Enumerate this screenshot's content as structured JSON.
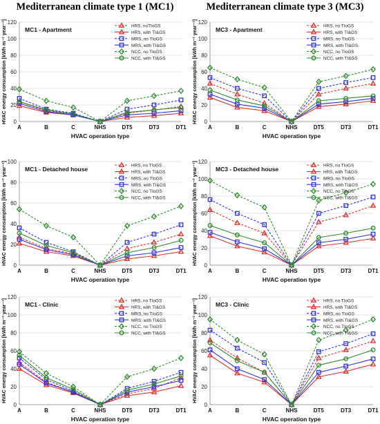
{
  "figure": {
    "col_titles": [
      "Mediterranean climate type 1 (MC1)",
      "Mediterranean climate type 3 (MC3)"
    ]
  },
  "chart_data": [
    {
      "type": "line",
      "title": "MC1 - Apartment",
      "xlabel": "HVAC operation type",
      "ylabel": "HVAC energy consumption  [kWh m⁻² year⁻¹]",
      "categories": [
        "A",
        "B",
        "C",
        "NHS",
        "DT5",
        "DT3",
        "DT1"
      ],
      "ylim": [
        0,
        120
      ],
      "yticks": [
        0,
        20,
        40,
        60,
        80,
        100,
        120
      ],
      "grid": true,
      "legend_position": "top-right",
      "series": [
        {
          "name": "HRS, noTIoGS",
          "color": "#e03030",
          "dashed": true,
          "marker": "triangle",
          "values": [
            24,
            13,
            9,
            0,
            10,
            14,
            18
          ]
        },
        {
          "name": "HRS, with TI&GS",
          "color": "#e03030",
          "dashed": false,
          "marker": "triangle",
          "values": [
            19,
            11,
            8,
            0,
            5,
            7,
            10
          ]
        },
        {
          "name": "MRS, no TIoGS",
          "color": "#3030e0",
          "dashed": true,
          "marker": "square",
          "values": [
            28,
            15,
            10,
            0,
            15,
            20,
            26
          ]
        },
        {
          "name": "MRS, with TI&GS",
          "color": "#3030e0",
          "dashed": false,
          "marker": "square",
          "values": [
            22,
            12,
            8,
            0,
            8,
            10,
            13
          ]
        },
        {
          "name": "NCC, no TIoGS",
          "color": "#2e8b2e",
          "dashed": true,
          "marker": "diamond",
          "values": [
            39,
            25,
            17,
            0,
            25,
            31,
            37
          ]
        },
        {
          "name": "NCC, with TI&GS",
          "color": "#2e8b2e",
          "dashed": false,
          "marker": "circle",
          "values": [
            24,
            14,
            9,
            0,
            11,
            14,
            17
          ]
        }
      ]
    },
    {
      "type": "line",
      "title": "MC3 - Apartment",
      "xlabel": "HVAC operation type",
      "ylabel": "HVAC energy consumption  [kWh m⁻² year⁻¹]",
      "categories": [
        "A",
        "B",
        "C",
        "NHS",
        "DT5",
        "DT3",
        "DT1"
      ],
      "ylim": [
        0,
        120
      ],
      "yticks": [
        0,
        20,
        40,
        60,
        80,
        100,
        120
      ],
      "grid": true,
      "legend_position": "top-right",
      "series": [
        {
          "name": "HRS, no TIoGS",
          "color": "#e03030",
          "dashed": true,
          "marker": "triangle",
          "values": [
            46,
            33,
            22,
            0,
            33,
            40,
            46
          ]
        },
        {
          "name": "HRS, with TI&GS",
          "color": "#e03030",
          "dashed": false,
          "marker": "triangle",
          "values": [
            29,
            17,
            13,
            0,
            18,
            21,
            25
          ]
        },
        {
          "name": "MRS, no TIoGS",
          "color": "#3030e0",
          "dashed": true,
          "marker": "square",
          "values": [
            53,
            40,
            31,
            0,
            40,
            47,
            53
          ]
        },
        {
          "name": "MRS, with TI&GS",
          "color": "#3030e0",
          "dashed": false,
          "marker": "square",
          "values": [
            33,
            21,
            16,
            0,
            21,
            24,
            28
          ]
        },
        {
          "name": "NCC, no TIoGS",
          "color": "#2e8b2e",
          "dashed": true,
          "marker": "diamond",
          "values": [
            65,
            51,
            41,
            0,
            48,
            55,
            63
          ]
        },
        {
          "name": "NCC, with TI&GS",
          "color": "#2e8b2e",
          "dashed": false,
          "marker": "circle",
          "values": [
            38,
            26,
            19,
            0,
            25,
            28,
            31
          ]
        }
      ]
    },
    {
      "type": "line",
      "title": "MC1 - Detached house",
      "xlabel": "HVAC operation type",
      "ylabel": "HVAC energy consumption  [kWh m⁻² year⁻¹]",
      "categories": [
        "A",
        "B",
        "C",
        "NHS",
        "DT5",
        "DT3",
        "DT1"
      ],
      "ylim": [
        0,
        100
      ],
      "yticks": [
        0,
        20,
        40,
        60,
        80,
        100
      ],
      "grid": true,
      "legend_position": "top-right",
      "series": [
        {
          "name": "HRS, no TIoGS",
          "color": "#e03030",
          "dashed": true,
          "marker": "triangle",
          "values": [
            27,
            16,
            11,
            0,
            16,
            22,
            30
          ]
        },
        {
          "name": "HRS, with TI&GS",
          "color": "#e03030",
          "dashed": false,
          "marker": "triangle",
          "values": [
            21,
            13,
            9,
            0,
            6,
            9,
            13
          ]
        },
        {
          "name": "MRS, no TIoGS",
          "color": "#3030e0",
          "dashed": true,
          "marker": "square",
          "values": [
            36,
            22,
            13,
            0,
            22,
            30,
            39
          ]
        },
        {
          "name": "MRS, with TI&GS",
          "color": "#3030e0",
          "dashed": false,
          "marker": "square",
          "values": [
            25,
            15,
            10,
            0,
            9,
            12,
            17
          ]
        },
        {
          "name": "NCC, no TIoGS",
          "color": "#2e8b2e",
          "dashed": true,
          "marker": "diamond",
          "values": [
            54,
            38,
            27,
            0,
            38,
            47,
            57
          ]
        },
        {
          "name": "NCC, with TI&GS",
          "color": "#2e8b2e",
          "dashed": false,
          "marker": "circle",
          "values": [
            31,
            19,
            12,
            0,
            12,
            17,
            24
          ]
        }
      ]
    },
    {
      "type": "line",
      "title": "MC3 - Detached house",
      "xlabel": "HVAC operation type",
      "ylabel": "HVAC energy consumption  [kWh m⁻² year⁻¹]",
      "categories": [
        "A",
        "B",
        "C",
        "NHS",
        "DT5",
        "DT3",
        "DT1"
      ],
      "ylim": [
        0,
        120
      ],
      "yticks": [
        0,
        20,
        40,
        60,
        80,
        100,
        120
      ],
      "grid": true,
      "legend_position": "top-right",
      "series": [
        {
          "name": "HRS, no TIoGS",
          "color": "#e03030",
          "dashed": true,
          "marker": "triangle",
          "values": [
            64,
            49,
            37,
            0,
            50,
            58,
            69
          ]
        },
        {
          "name": "HRS, with TI&GS",
          "color": "#e03030",
          "dashed": false,
          "marker": "triangle",
          "values": [
            34,
            22,
            15,
            0,
            22,
            26,
            31
          ]
        },
        {
          "name": "MRS, no TIoGS",
          "color": "#3030e0",
          "dashed": true,
          "marker": "square",
          "values": [
            76,
            60,
            47,
            0,
            60,
            69,
            79
          ]
        },
        {
          "name": "MRS, with TI&GS",
          "color": "#3030e0",
          "dashed": false,
          "marker": "square",
          "values": [
            38,
            27,
            19,
            0,
            26,
            30,
            36
          ]
        },
        {
          "name": "NCC, no TIoGS",
          "color": "#2e8b2e",
          "dashed": true,
          "marker": "diamond",
          "values": [
            98,
            81,
            67,
            0,
            75,
            84,
            94
          ]
        },
        {
          "name": "NCC, with TI&GS",
          "color": "#2e8b2e",
          "dashed": false,
          "marker": "circle",
          "values": [
            46,
            35,
            26,
            0,
            32,
            37,
            43
          ]
        }
      ]
    },
    {
      "type": "line",
      "title": "MC1 - Clinic",
      "xlabel": "HVAC operation type",
      "ylabel": "HVAC energy consumption  [kWh m⁻² year⁻¹]",
      "categories": [
        "A",
        "B",
        "C",
        "NHS",
        "DT5",
        "DT3",
        "DT1"
      ],
      "ylim": [
        0,
        120
      ],
      "yticks": [
        0,
        20,
        40,
        60,
        80,
        100,
        120
      ],
      "grid": true,
      "legend_position": "top-right",
      "series": [
        {
          "name": "HRS, no TIoGS",
          "color": "#e03030",
          "dashed": true,
          "marker": "triangle",
          "values": [
            47,
            25,
            14,
            0,
            12,
            18,
            30
          ]
        },
        {
          "name": "HRS, with TI&GS",
          "color": "#e03030",
          "dashed": false,
          "marker": "triangle",
          "values": [
            40,
            22,
            13,
            0,
            10,
            14,
            21
          ]
        },
        {
          "name": "MRS, no TIoGS",
          "color": "#3030e0",
          "dashed": true,
          "marker": "square",
          "values": [
            52,
            28,
            15,
            0,
            18,
            26,
            36
          ]
        },
        {
          "name": "MRS, with TI&GS",
          "color": "#3030e0",
          "dashed": false,
          "marker": "square",
          "values": [
            45,
            24,
            14,
            0,
            14,
            20,
            27
          ]
        },
        {
          "name": "NCC, no TIoGS",
          "color": "#2e8b2e",
          "dashed": true,
          "marker": "diamond",
          "values": [
            59,
            35,
            20,
            0,
            31,
            40,
            52
          ]
        },
        {
          "name": "NCC, with TI&GS",
          "color": "#2e8b2e",
          "dashed": false,
          "marker": "circle",
          "values": [
            55,
            30,
            17,
            0,
            16,
            23,
            32
          ]
        }
      ]
    },
    {
      "type": "line",
      "title": "MC3 - Clinic",
      "xlabel": "HVAC operation type",
      "ylabel": "HVAC energy consumption  [kWh m⁻² year⁻¹]",
      "categories": [
        "A",
        "B",
        "C",
        "NHS",
        "DT5",
        "DT3",
        "DT1"
      ],
      "ylim": [
        0,
        120
      ],
      "yticks": [
        0,
        20,
        40,
        60,
        80,
        100,
        120
      ],
      "grid": true,
      "legend_position": "top-right",
      "series": [
        {
          "name": "HRS, no TIoGS",
          "color": "#e03030",
          "dashed": true,
          "marker": "triangle",
          "values": [
            72,
            52,
            36,
            0,
            52,
            61,
            71
          ]
        },
        {
          "name": "HRS, with TI&GS",
          "color": "#e03030",
          "dashed": false,
          "marker": "triangle",
          "values": [
            55,
            35,
            25,
            0,
            31,
            37,
            45
          ]
        },
        {
          "name": "MRS, no TIoGS",
          "color": "#3030e0",
          "dashed": true,
          "marker": "square",
          "values": [
            83,
            63,
            47,
            0,
            59,
            68,
            79
          ]
        },
        {
          "name": "MRS, with TI&GS",
          "color": "#3030e0",
          "dashed": false,
          "marker": "square",
          "values": [
            61,
            40,
            28,
            0,
            36,
            43,
            51
          ]
        },
        {
          "name": "NCC, no TIoGS",
          "color": "#2e8b2e",
          "dashed": true,
          "marker": "diamond",
          "values": [
            95,
            72,
            56,
            0,
            72,
            83,
            95
          ]
        },
        {
          "name": "NCC, with TI&GS",
          "color": "#2e8b2e",
          "dashed": false,
          "marker": "circle",
          "values": [
            69,
            49,
            36,
            0,
            44,
            51,
            61
          ]
        }
      ]
    }
  ]
}
